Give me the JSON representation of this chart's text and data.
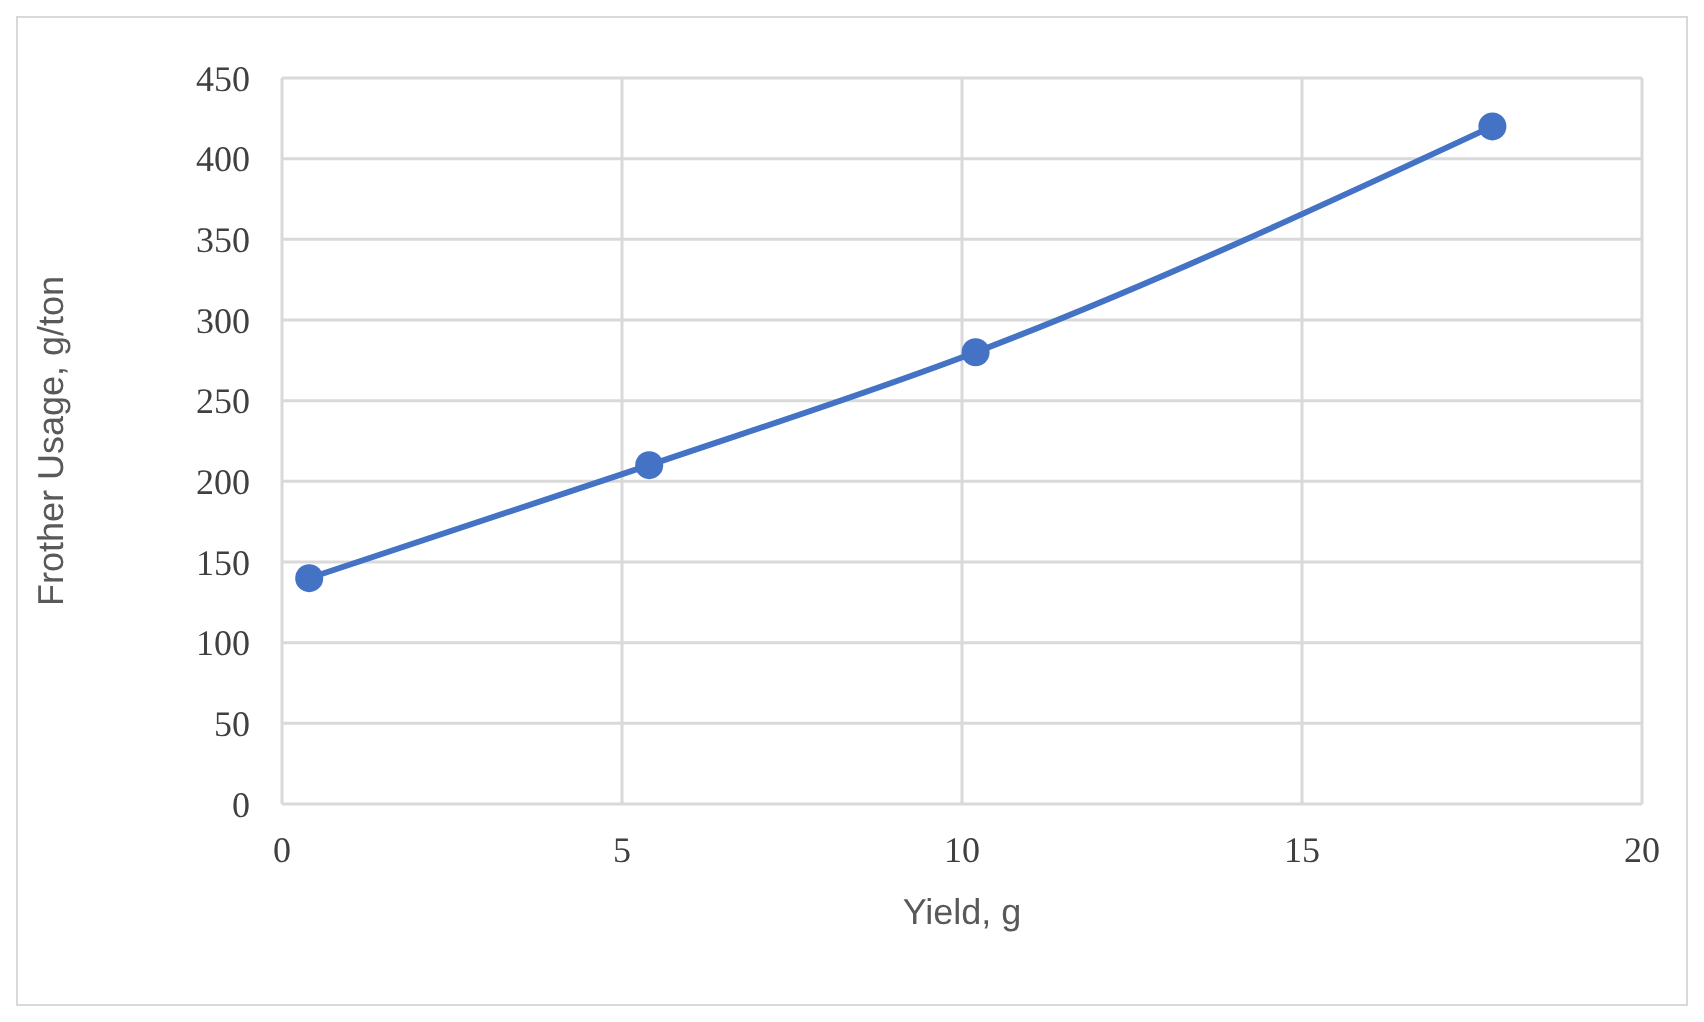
{
  "chart_data": {
    "type": "line",
    "xlabel": "Yield, g",
    "ylabel": "Frother Usage, g/ton",
    "x": [
      0.4,
      5.4,
      10.2,
      17.8
    ],
    "series": [
      {
        "color": "#4472c4",
        "values": [
          140,
          210,
          280,
          420
        ]
      }
    ],
    "xlim": [
      0,
      20
    ],
    "xticks": [
      0,
      5,
      10,
      15,
      20
    ],
    "ylim": [
      0,
      450
    ],
    "yticks": [
      0,
      50,
      100,
      150,
      200,
      250,
      300,
      350,
      400,
      450
    ],
    "grid": true,
    "legend": false,
    "marker": "circle",
    "line_style": "solid"
  }
}
